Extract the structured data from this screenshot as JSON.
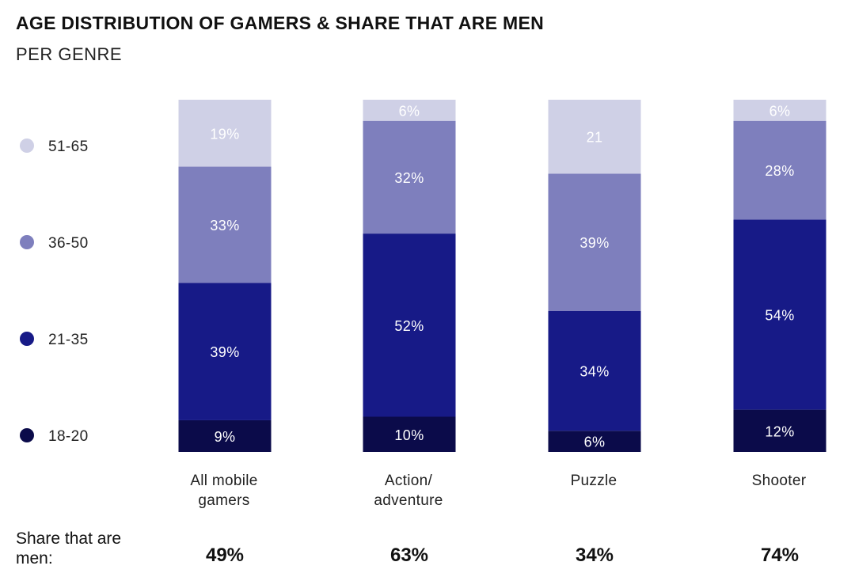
{
  "chart_data": {
    "type": "bar",
    "stacked": true,
    "title": "AGE DISTRIBUTION OF GAMERS & SHARE THAT ARE MEN",
    "subtitle": "PER GENRE",
    "categories": [
      [
        "All mobile",
        "gamers"
      ],
      [
        "Action/",
        "adventure"
      ],
      [
        "Puzzle"
      ],
      [
        "Shooter"
      ]
    ],
    "series": [
      {
        "name": "18-20",
        "color": "#0b0b4a",
        "text_color": "#ffffff",
        "values": [
          9,
          10,
          6,
          12
        ],
        "labels": [
          "9%",
          "10%",
          "6%",
          "12%"
        ]
      },
      {
        "name": "21-35",
        "color": "#171a87",
        "text_color": "#ffffff",
        "values": [
          39,
          52,
          34,
          54
        ],
        "labels": [
          "39%",
          "52%",
          "34%",
          "54%"
        ]
      },
      {
        "name": "36-50",
        "color": "#7e7fbd",
        "text_color": "#ffffff",
        "values": [
          33,
          32,
          39,
          28
        ],
        "labels": [
          "33%",
          "32%",
          "39%",
          "28%"
        ]
      },
      {
        "name": "51-65",
        "color": "#cfd0e6",
        "text_color": "#ffffff",
        "values": [
          19,
          6,
          21,
          6
        ],
        "labels": [
          "19%",
          "6%",
          "21",
          "6%"
        ]
      }
    ],
    "legend_order": [
      "51-65",
      "36-50",
      "21-35",
      "18-20"
    ],
    "share_label": "Share that are men:",
    "share_values": [
      "49%",
      "63%",
      "34%",
      "74%"
    ],
    "ylim": [
      0,
      100
    ]
  }
}
